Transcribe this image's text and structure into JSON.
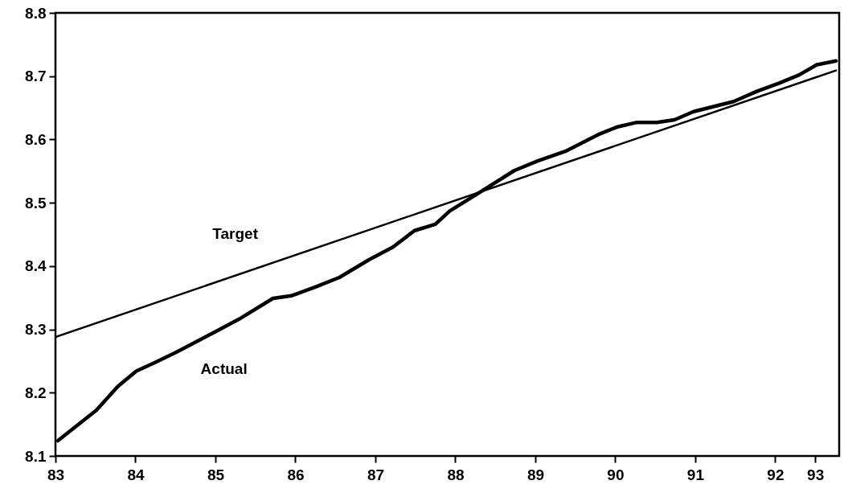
{
  "chart_data": {
    "type": "line",
    "xlim": [
      83,
      92.8
    ],
    "ylim": [
      8.1,
      8.8
    ],
    "xticks": [
      83,
      84,
      85,
      86,
      87,
      88,
      89,
      90,
      91,
      92,
      {
        "value": 92.5,
        "label": "93"
      }
    ],
    "yticks": [
      8.1,
      8.2,
      8.3,
      8.4,
      8.5,
      8.6,
      8.7,
      8.8
    ],
    "grid": false,
    "line_style": "solid",
    "marker": "none",
    "series": [
      {
        "name": "Actual",
        "color": "#000000",
        "x": [
          83.03,
          83.51,
          83.78,
          84.01,
          84.25,
          84.51,
          84.98,
          85.32,
          85.72,
          85.95,
          86.25,
          86.55,
          86.92,
          87.22,
          87.49,
          87.75,
          87.93,
          88.21,
          88.74,
          89.03,
          89.39,
          89.81,
          90.03,
          90.27,
          90.52,
          90.74,
          90.98,
          91.48,
          91.77,
          92.05,
          92.3,
          92.52,
          92.76
        ],
        "values": [
          8.124,
          8.172,
          8.21,
          8.234,
          8.248,
          8.264,
          8.295,
          8.318,
          8.349,
          8.353,
          8.367,
          8.382,
          8.41,
          8.43,
          8.456,
          8.466,
          8.487,
          8.509,
          8.551,
          8.566,
          8.582,
          8.609,
          8.62,
          8.627,
          8.627,
          8.631,
          8.644,
          8.66,
          8.676,
          8.689,
          8.702,
          8.718,
          8.724
        ]
      },
      {
        "name": "Target",
        "color": "#000000",
        "x": [
          83,
          92.76
        ],
        "values": [
          8.288,
          8.709
        ]
      }
    ]
  }
}
